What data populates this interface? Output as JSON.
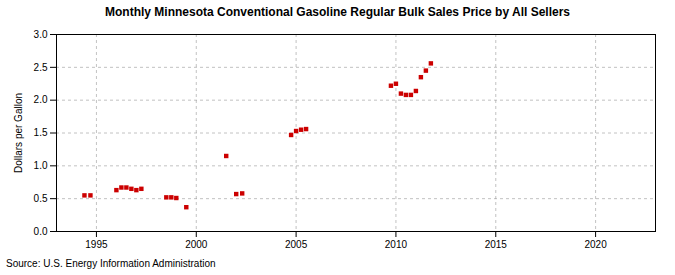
{
  "chart_data": {
    "type": "scatter",
    "title": "Monthly Minnesota Conventional Gasoline Regular Bulk Sales Price by All Sellers",
    "ylabel": "Dollars per Gallon",
    "source": "Source: U.S. Energy Information Administration",
    "color": "#cc0000",
    "marker": "square",
    "x": [
      1994.4,
      1994.7,
      1996.0,
      1996.25,
      1996.5,
      1996.75,
      1997.0,
      1997.25,
      1998.5,
      1998.75,
      1999.0,
      1999.5,
      2001.5,
      2002.0,
      2002.3,
      2004.75,
      2005.0,
      2005.25,
      2005.5,
      2009.75,
      2010.0,
      2010.25,
      2010.5,
      2010.75,
      2011.0,
      2011.25,
      2011.5,
      2011.75
    ],
    "values": [
      0.55,
      0.55,
      0.63,
      0.67,
      0.67,
      0.65,
      0.63,
      0.65,
      0.52,
      0.52,
      0.51,
      0.37,
      1.15,
      0.57,
      0.58,
      1.47,
      1.53,
      1.55,
      1.56,
      2.22,
      2.25,
      2.1,
      2.08,
      2.08,
      2.14,
      2.35,
      2.45,
      2.56
    ],
    "xlim": [
      1993.0,
      2023.0
    ],
    "ylim": [
      0.0,
      3.0
    ],
    "xticks": [
      1995,
      2000,
      2005,
      2010,
      2015,
      2020
    ],
    "yticks": [
      {
        "value": 0.0,
        "label": "0.0"
      },
      {
        "value": 0.5,
        "label": "0.5"
      },
      {
        "value": 1.0,
        "label": "1.0"
      },
      {
        "value": 1.5,
        "label": "1.5"
      },
      {
        "value": 2.0,
        "label": "2.0"
      },
      {
        "value": 2.5,
        "label": "2.5"
      },
      {
        "value": 3.0,
        "label": "3.0"
      }
    ],
    "grid": true
  }
}
